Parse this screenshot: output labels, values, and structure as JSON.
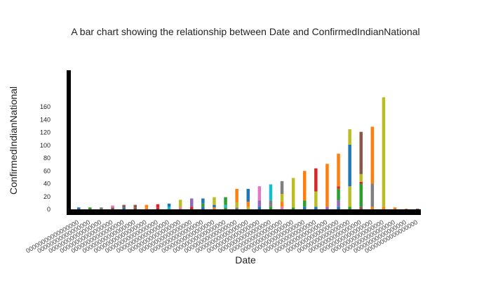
{
  "chart_data": {
    "type": "bar",
    "stacked": true,
    "title": "A bar chart showing the relationship between Date and ConfirmedIndianNational",
    "xlabel": "Date",
    "ylabel": "ConfirmedIndianNational",
    "ylim": [
      0,
      175
    ],
    "yticks": [
      0,
      20,
      40,
      60,
      80,
      100,
      120,
      140,
      160
    ],
    "grid": false,
    "legend": "none",
    "x_tick_label": "00000000000000000",
    "palette": [
      "#1f77b4",
      "#ff7f0e",
      "#2ca02c",
      "#d62728",
      "#9467bd",
      "#8c564b",
      "#e377c2",
      "#7f7f7f",
      "#bcbd22",
      "#17becf"
    ],
    "bars": [
      {
        "segments": [
          {
            "value": 3,
            "color": "#1f77b4"
          }
        ]
      },
      {
        "segments": [
          {
            "value": 3,
            "color": "#2ca02c"
          }
        ]
      },
      {
        "segments": [
          {
            "value": 3,
            "color": "#7f7f7f"
          }
        ]
      },
      {
        "segments": [
          {
            "value": 3,
            "color": "#8c564b"
          },
          {
            "value": 3,
            "color": "#e377c2"
          }
        ]
      },
      {
        "segments": [
          {
            "value": 3,
            "color": "#1f77b4"
          },
          {
            "value": 4,
            "color": "#8c564b"
          }
        ]
      },
      {
        "segments": [
          {
            "value": 3,
            "color": "#8c564b"
          },
          {
            "value": 4,
            "color": "#8c564b"
          }
        ]
      },
      {
        "segments": [
          {
            "value": 3,
            "color": "#ff7f0e"
          },
          {
            "value": 4,
            "color": "#ff7f0e"
          }
        ]
      },
      {
        "segments": [
          {
            "value": 3,
            "color": "#d62728"
          },
          {
            "value": 5,
            "color": "#d62728"
          }
        ]
      },
      {
        "segments": [
          {
            "value": 4,
            "color": "#17becf"
          },
          {
            "value": 5,
            "color": "#1f77b4"
          }
        ]
      },
      {
        "segments": [
          {
            "value": 3,
            "color": "#e377c2"
          },
          {
            "value": 12,
            "color": "#bcbd22"
          }
        ]
      },
      {
        "segments": [
          {
            "value": 4,
            "color": "#d62728"
          },
          {
            "value": 13,
            "color": "#9467bd"
          }
        ]
      },
      {
        "segments": [
          {
            "value": 4,
            "color": "#1f77b4"
          },
          {
            "value": 5,
            "color": "#2ca02c"
          },
          {
            "value": 8,
            "color": "#1f77b4"
          }
        ]
      },
      {
        "segments": [
          {
            "value": 3,
            "color": "#ff7f0e"
          },
          {
            "value": 4,
            "color": "#1f77b4"
          },
          {
            "value": 12,
            "color": "#bcbd22"
          }
        ]
      },
      {
        "segments": [
          {
            "value": 3,
            "color": "#2ca02c"
          },
          {
            "value": 4,
            "color": "#17becf"
          },
          {
            "value": 12,
            "color": "#2ca02c"
          }
        ]
      },
      {
        "segments": [
          {
            "value": 3,
            "color": "#7f7f7f"
          },
          {
            "value": 8,
            "color": "#bcbd22"
          },
          {
            "value": 21,
            "color": "#ff7f0e"
          }
        ]
      },
      {
        "segments": [
          {
            "value": 4,
            "color": "#bcbd22"
          },
          {
            "value": 8,
            "color": "#ff7f0e"
          },
          {
            "value": 20,
            "color": "#1f77b4"
          }
        ]
      },
      {
        "segments": [
          {
            "value": 4,
            "color": "#1f77b4"
          },
          {
            "value": 10,
            "color": "#9467bd"
          },
          {
            "value": 22,
            "color": "#e377c2"
          }
        ]
      },
      {
        "segments": [
          {
            "value": 4,
            "color": "#2ca02c"
          },
          {
            "value": 10,
            "color": "#7f7f7f"
          },
          {
            "value": 25,
            "color": "#17becf"
          }
        ]
      },
      {
        "segments": [
          {
            "value": 4,
            "color": "#e377c2"
          },
          {
            "value": 8,
            "color": "#ff7f0e"
          },
          {
            "value": 12,
            "color": "#bcbd22"
          },
          {
            "value": 20,
            "color": "#7f7f7f"
          }
        ]
      },
      {
        "segments": [
          {
            "value": 3,
            "color": "#2ca02c"
          },
          {
            "value": 46,
            "color": "#bcbd22"
          }
        ]
      },
      {
        "segments": [
          {
            "value": 4,
            "color": "#1f77b4"
          },
          {
            "value": 10,
            "color": "#2ca02c"
          },
          {
            "value": 46,
            "color": "#ff7f0e"
          }
        ]
      },
      {
        "segments": [
          {
            "value": 4,
            "color": "#1f77b4"
          },
          {
            "value": 24,
            "color": "#bcbd22"
          },
          {
            "value": 36,
            "color": "#d62728"
          }
        ]
      },
      {
        "segments": [
          {
            "value": 4,
            "color": "#9467bd"
          },
          {
            "value": 67,
            "color": "#ff7f0e"
          }
        ]
      },
      {
        "segments": [
          {
            "value": 4,
            "color": "#1f77b4"
          },
          {
            "value": 10,
            "color": "#9467bd"
          },
          {
            "value": 18,
            "color": "#2ca02c"
          },
          {
            "value": 4,
            "color": "#d62728"
          },
          {
            "value": 51,
            "color": "#ff7f0e"
          }
        ]
      },
      {
        "segments": [
          {
            "value": 4,
            "color": "#2ca02c"
          },
          {
            "value": 32,
            "color": "#bcbd22"
          },
          {
            "value": 65,
            "color": "#1f77b4"
          },
          {
            "value": 24,
            "color": "#bcbd22"
          }
        ]
      },
      {
        "segments": [
          {
            "value": 4,
            "color": "#8c564b"
          },
          {
            "value": 36,
            "color": "#2ca02c"
          },
          {
            "value": 3,
            "color": "#d62728"
          },
          {
            "value": 12,
            "color": "#bcbd22"
          },
          {
            "value": 66,
            "color": "#8c564b"
          }
        ]
      },
      {
        "segments": [
          {
            "value": 4,
            "color": "#ff7f0e"
          },
          {
            "value": 36,
            "color": "#7f7f7f"
          },
          {
            "value": 89,
            "color": "#ff7f0e"
          }
        ]
      },
      {
        "segments": [
          {
            "value": 4,
            "color": "#ff7f0e"
          },
          {
            "value": 171,
            "color": "#bcbd22"
          }
        ]
      },
      {
        "segments": [
          {
            "value": 3,
            "color": "#ff7f0e"
          }
        ]
      },
      {
        "segments": [
          {
            "value": 1,
            "color": "#ff7f0e"
          }
        ]
      },
      {
        "segments": [
          {
            "value": 1,
            "color": "#8c564b"
          }
        ]
      }
    ]
  }
}
